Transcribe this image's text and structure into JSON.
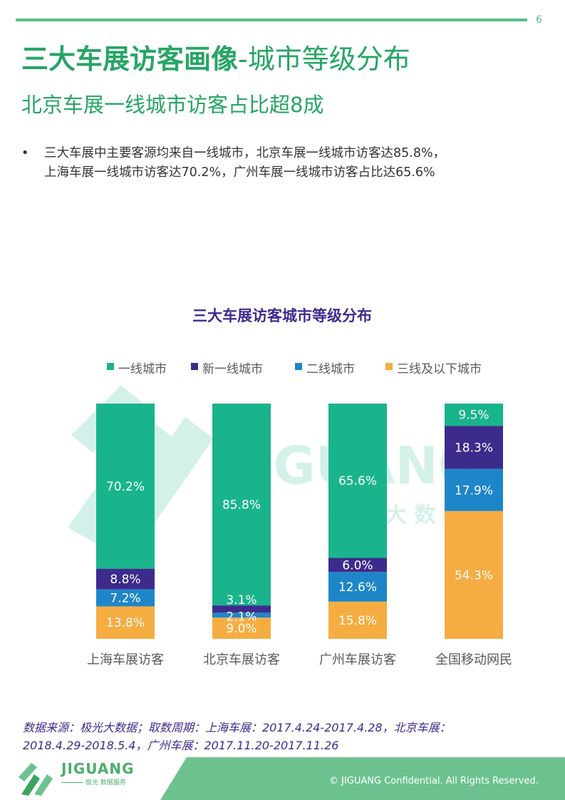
{
  "header": {
    "page_number": "6",
    "title_bold": "三大车展访客画像",
    "title_rest": "-城市等级分布",
    "subtitle": "北京车展一线城市访客占比超8成"
  },
  "bullet": {
    "symbol": "•",
    "line1": "三大车展中主要客源均来自一线城市，北京车展一线城市访客达85.8%，",
    "line2": "上海车展一线城市访客达70.2%，广州车展一线城市访客占比达65.6%"
  },
  "watermark": {
    "brand": "JIGUANG",
    "sub": "极 光 大 数 据"
  },
  "chart_data": {
    "type": "bar",
    "stacked": true,
    "normalized": true,
    "title": "三大车展访客城市等级分布",
    "legend_position": "top",
    "categories": [
      "上海车展访客",
      "北京车展访客",
      "广州车展访客",
      "全国移动网民"
    ],
    "series": [
      {
        "name": "一线城市",
        "color": "#19b48c",
        "values": [
          70.2,
          85.8,
          65.6,
          9.5
        ]
      },
      {
        "name": "新一线城市",
        "color": "#3d2b8c",
        "values": [
          8.8,
          3.1,
          6.0,
          18.3
        ]
      },
      {
        "name": "二线城市",
        "color": "#1e86c8",
        "values": [
          7.2,
          2.1,
          12.6,
          17.9
        ]
      },
      {
        "name": "三线及以下城市",
        "color": "#f5ad42",
        "values": [
          13.8,
          9.0,
          15.8,
          54.3
        ]
      }
    ]
  },
  "footer": {
    "source_line1": "数据来源：极光大数据；取数周期：上海车展：2017.4.24-2017.4.28，北京车展：",
    "source_line2": "2018.4.29-2018.5.4，广州车展：2017.11.20-2017.11.26",
    "logo_text": "JIGUANG",
    "logo_sub": "极光 数据服务",
    "copyright": "© JIGUANG Confidential. All Rights Reserved."
  },
  "colors": {
    "brand_green": "#26a565",
    "title_purple": "#3f2a8f",
    "footer_green": "#5cbf86"
  }
}
